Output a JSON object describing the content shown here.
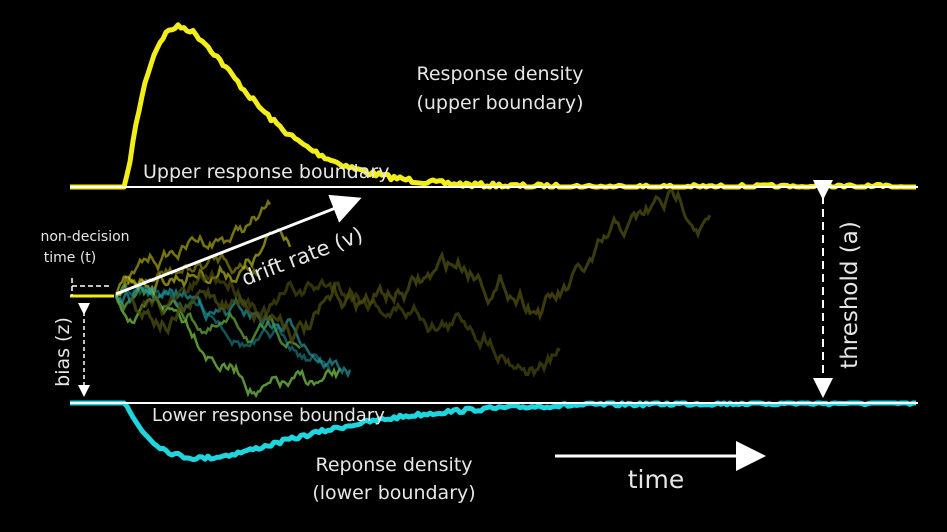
{
  "labels": {
    "upper_density_line1": "Response density",
    "upper_density_line2": "(upper boundary)",
    "upper_boundary": "Upper response boundary",
    "lower_boundary": "Lower response boundary",
    "lower_density_line1": "Reponse density",
    "lower_density_line2": "(lower boundary)",
    "drift_rate": "drift rate (v)",
    "threshold": "threshold (a)",
    "bias": "bias (z)",
    "non_decision_line1": "non-decision",
    "non_decision_line2": "time (t)",
    "time": "time"
  },
  "colors": {
    "background": "#000000",
    "boundary": "#ffffff",
    "upper_density": "#f2ee1a",
    "lower_density": "#1fd6df",
    "text": "#e6e6e6",
    "path_yellow": "#d6d31c",
    "path_green": "#7fd04a",
    "path_teal": "#1f9aa0",
    "path_olive": "#4a4a10"
  }
}
